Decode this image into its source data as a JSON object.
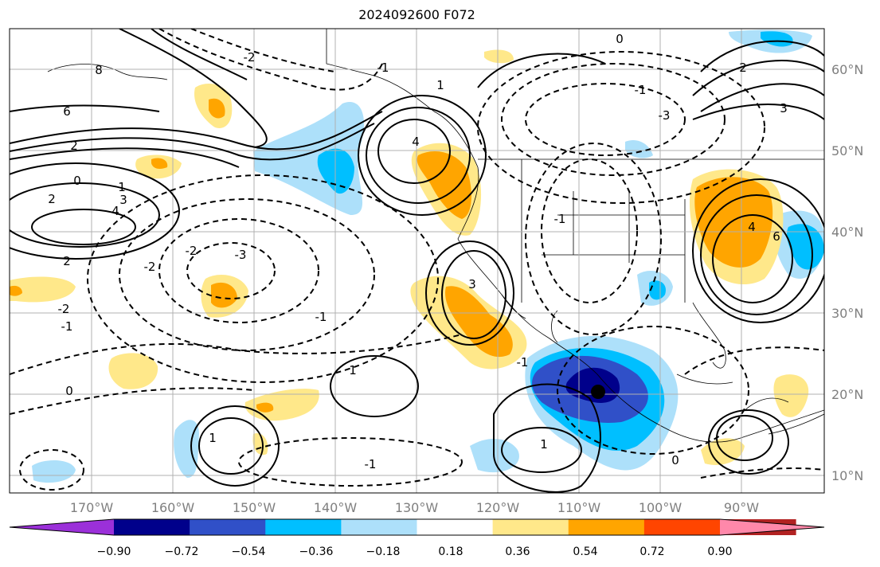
{
  "title": "2024092600 F072",
  "map": {
    "projection": "Mercator",
    "lon_range": [
      -180,
      -82
    ],
    "lat_range": [
      8,
      65
    ],
    "gridlines": true,
    "lat_labels": [
      "60°N",
      "50°N",
      "40°N",
      "30°N",
      "20°N",
      "10°N"
    ],
    "lon_labels": [
      "170°W",
      "160°W",
      "150°W",
      "140°W",
      "130°W",
      "120°W",
      "110°W",
      "100°W",
      "90°W"
    ],
    "contours": {
      "solid_labels": [
        "8",
        "6",
        "4",
        "2",
        "1",
        "2",
        "4",
        "3",
        "2",
        "1",
        "1",
        "1",
        "4",
        "1",
        "3",
        "6",
        "2",
        "3"
      ],
      "dashed_labels": [
        "0",
        "-1",
        "-2",
        "-3",
        "-2",
        "-1",
        "-2",
        "-1",
        "-3",
        "0",
        "-1",
        "0",
        "-1",
        "-1",
        "0",
        "-2",
        "-1"
      ],
      "line_color": "#000000"
    },
    "marker": {
      "label": "current position",
      "lon": -108,
      "lat": 20.3
    }
  },
  "colorbar": {
    "ticks": [
      "−0.90",
      "−0.72",
      "−0.54",
      "−0.36",
      "−0.18",
      "0.18",
      "0.36",
      "0.54",
      "0.72",
      "0.90"
    ],
    "colors": [
      "#9b30d9",
      "#00008b",
      "#3050c8",
      "#00bfff",
      "#ade0fa",
      "#ffffff",
      "#ffe88a",
      "#ffa500",
      "#ff4500",
      "#b22222",
      "#ff88aa"
    ],
    "extend": "both"
  }
}
